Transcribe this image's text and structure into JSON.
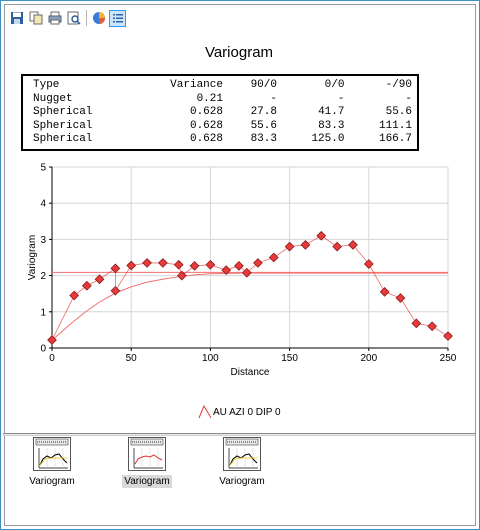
{
  "toolbar": {
    "buttons": [
      {
        "name": "save-icon",
        "active": false
      },
      {
        "name": "copy-icon",
        "active": false
      },
      {
        "name": "print-icon",
        "active": false
      },
      {
        "name": "print-preview-icon",
        "active": false
      },
      {
        "name": "chart-style-icon",
        "active": false
      },
      {
        "name": "list-view-icon",
        "active": true
      }
    ]
  },
  "title": "Variogram",
  "model_table": {
    "header": [
      "Type",
      "Variance",
      "90/0",
      "0/0",
      "-/90"
    ],
    "rows": [
      [
        "Nugget",
        "0.21",
        "-",
        "-",
        "-"
      ],
      [
        "Spherical",
        "0.628",
        "27.8",
        "41.7",
        "55.6"
      ],
      [
        "Spherical",
        "0.628",
        "55.6",
        "83.3",
        "111.1"
      ],
      [
        "Spherical",
        "0.628",
        "83.3",
        "125.0",
        "166.7"
      ]
    ]
  },
  "chart_data": {
    "type": "scatter",
    "xlabel": "Distance",
    "ylabel": "Variogram",
    "xlim": [
      0,
      250
    ],
    "ylim": [
      0,
      5
    ],
    "x_ticks": [
      0,
      50,
      100,
      150,
      200,
      250
    ],
    "y_ticks": [
      0,
      1,
      2,
      3,
      4,
      5
    ],
    "grid": true,
    "legend": {
      "placement": "bottom",
      "entries": [
        "AU AZI 0 DIP 0"
      ]
    },
    "series": [
      {
        "name": "AU AZI 0 DIP 0",
        "marker": "diamond",
        "color": "#e83a3a",
        "points": [
          [
            0,
            0.22
          ],
          [
            14,
            1.45
          ],
          [
            22,
            1.72
          ],
          [
            30,
            1.9
          ],
          [
            40,
            2.2
          ],
          [
            40,
            1.58
          ],
          [
            50,
            2.28
          ],
          [
            60,
            2.35
          ],
          [
            70,
            2.35
          ],
          [
            80,
            2.3
          ],
          [
            82,
            2.0
          ],
          [
            90,
            2.27
          ],
          [
            100,
            2.3
          ],
          [
            110,
            2.15
          ],
          [
            118,
            2.27
          ],
          [
            123,
            2.08
          ],
          [
            130,
            2.35
          ],
          [
            140,
            2.5
          ],
          [
            150,
            2.8
          ],
          [
            160,
            2.85
          ],
          [
            170,
            3.1
          ],
          [
            180,
            2.8
          ],
          [
            190,
            2.85
          ],
          [
            200,
            2.32
          ],
          [
            210,
            1.55
          ],
          [
            220,
            1.38
          ],
          [
            230,
            0.68
          ],
          [
            240,
            0.6
          ],
          [
            250,
            0.33
          ]
        ]
      }
    ],
    "model_curve": {
      "color": "#f07070",
      "points": [
        [
          0,
          0.21
        ],
        [
          10,
          0.6
        ],
        [
          20,
          0.96
        ],
        [
          30,
          1.27
        ],
        [
          40,
          1.52
        ],
        [
          50,
          1.69
        ],
        [
          60,
          1.82
        ],
        [
          70,
          1.9
        ],
        [
          80,
          1.97
        ],
        [
          90,
          2.02
        ],
        [
          100,
          2.05
        ],
        [
          110,
          2.06
        ],
        [
          120,
          2.07
        ],
        [
          130,
          2.07
        ],
        [
          250,
          2.07
        ]
      ]
    },
    "sill_line": {
      "color": "#f07070",
      "value": 2.09
    }
  },
  "thumbnails": [
    {
      "label": "Variogram",
      "selected": false
    },
    {
      "label": "Variogram",
      "selected": true
    },
    {
      "label": "Variogram",
      "selected": false
    }
  ]
}
